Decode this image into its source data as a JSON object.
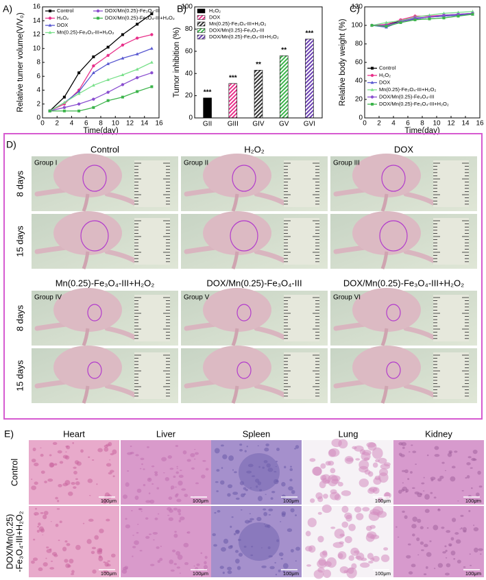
{
  "chart_data": [
    {
      "type": "line",
      "label": "A)",
      "xlabel": "Time(day)",
      "ylabel": "Relative tumer volume(V/V₀)",
      "x": [
        1,
        3,
        5,
        7,
        9,
        11,
        13,
        15
      ],
      "xlim": [
        0,
        16
      ],
      "xticks": [
        0,
        2,
        4,
        6,
        8,
        10,
        12,
        14,
        16
      ],
      "ylim": [
        0,
        16
      ],
      "yticks": [
        0,
        2,
        4,
        6,
        8,
        10,
        12,
        14,
        16
      ],
      "legend": "upper left",
      "series": [
        {
          "name": "Control",
          "color": "#000000",
          "values": [
            1,
            3,
            6.5,
            8.8,
            10.2,
            12.0,
            13.5,
            15.0
          ]
        },
        {
          "name": "H₂O₂",
          "color": "#e8308a",
          "values": [
            1,
            2,
            4,
            7.5,
            9,
            10.5,
            11.5,
            12.0
          ]
        },
        {
          "name": "DOX",
          "color": "#5656d0",
          "values": [
            1,
            2.2,
            3.8,
            6.5,
            7.8,
            8.6,
            9.2,
            10.0
          ]
        },
        {
          "name": "Mn(0.25)-Fe₃O₄-III+H₂O₂",
          "color": "#78e08a",
          "values": [
            1,
            2.2,
            3.5,
            4.7,
            5.5,
            6.2,
            7.0,
            8.0
          ]
        },
        {
          "name": "DOX/Mn(0.25)-Fe₃O₄-III",
          "color": "#8a4fd0",
          "values": [
            1,
            1.5,
            2.0,
            2.7,
            3.7,
            4.8,
            5.8,
            6.5
          ]
        },
        {
          "name": "DOX/Mn(0.25)-Fe₃O₄-III+H₂O₂",
          "color": "#3cb44b",
          "values": [
            1,
            1.0,
            1.0,
            1.5,
            2.5,
            3.0,
            3.8,
            4.5
          ]
        }
      ]
    },
    {
      "type": "bar",
      "label": "B)",
      "ylabel": "Tumor inhibition (%)",
      "categories": [
        "GII",
        "GIII",
        "GIV",
        "GV",
        "GVI"
      ],
      "ylim": [
        0,
        100
      ],
      "yticks": [
        0,
        20,
        40,
        60,
        80,
        100
      ],
      "legend": "upper left",
      "annotations": [
        "***",
        "***",
        "**",
        "**",
        "***"
      ],
      "series": [
        {
          "name": "H₂O₂",
          "color": "#000000",
          "values": [
            18,
            null,
            null,
            null,
            null
          ]
        },
        {
          "name": "DOX",
          "color": "#e8308a",
          "values": [
            null,
            31,
            null,
            null,
            null
          ]
        },
        {
          "name": "Mn(0.25)-Fe₃O₄-III+H₂O₂",
          "color": "#333333",
          "values": [
            null,
            null,
            43,
            null,
            null
          ]
        },
        {
          "name": "DOX/Mn(0.25)-Fe₃O₄-III",
          "color": "#3cb44b",
          "values": [
            null,
            null,
            null,
            56,
            null
          ]
        },
        {
          "name": "DOX/Mn(0.25)-Fe₃O₄-III+H₂O₂",
          "color": "#6a3fb0",
          "values": [
            null,
            null,
            null,
            null,
            71
          ]
        }
      ]
    },
    {
      "type": "line",
      "label": "C)",
      "xlabel": "Time(day)",
      "ylabel": "Relative body weight (%)",
      "x": [
        1,
        3,
        5,
        7,
        9,
        11,
        13,
        15
      ],
      "xlim": [
        0,
        16
      ],
      "xticks": [
        0,
        2,
        4,
        6,
        8,
        10,
        12,
        14,
        16
      ],
      "ylim": [
        0,
        120
      ],
      "yticks": [
        0,
        20,
        40,
        60,
        80,
        100,
        120
      ],
      "legend": "lower left",
      "series": [
        {
          "name": "Control",
          "color": "#000000",
          "values": [
            100,
            100,
            105,
            107,
            109,
            110,
            111,
            113
          ]
        },
        {
          "name": "H₂O₂",
          "color": "#e8308a",
          "values": [
            100,
            101,
            106,
            110,
            110,
            111,
            112,
            113
          ]
        },
        {
          "name": "DOX",
          "color": "#5656d0",
          "values": [
            100,
            98,
            104,
            107,
            109,
            110,
            111,
            112
          ]
        },
        {
          "name": "Mn(0.25)-Fe₃O₄-III+H₂O₂",
          "color": "#78e08a",
          "values": [
            100,
            103,
            105,
            109,
            111,
            113,
            114,
            115
          ]
        },
        {
          "name": "DOX/Mn(0.25)-Fe₃O₄-III",
          "color": "#8a4fd0",
          "values": [
            100,
            100,
            104,
            108,
            109,
            111,
            112,
            113
          ]
        },
        {
          "name": "DOX/Mn(0.25)-Fe₃O₄-III+H₂O₂",
          "color": "#3cb44b",
          "values": [
            100,
            99,
            103,
            106,
            107,
            108,
            110,
            112
          ]
        }
      ]
    }
  ],
  "panel_d": {
    "label": "D)",
    "day_labels": [
      "8 days",
      "15 days"
    ],
    "groups": [
      {
        "title": "Control",
        "group": "Group I"
      },
      {
        "title": "H₂O₂",
        "group": "Group II"
      },
      {
        "title": "DOX",
        "group": "Group III"
      },
      {
        "title": "Mn(0.25)-Fe₃O₄-III+H₂O₂",
        "group": "Group IV"
      },
      {
        "title": "DOX/Mn(0.25)-Fe₃O₄-III",
        "group": "Group V"
      },
      {
        "title": "DOX/Mn(0.25)-Fe₃O₄-III+H₂O₂",
        "group": "Group VI"
      }
    ]
  },
  "panel_e": {
    "label": "E)",
    "organs": [
      "Heart",
      "Liver",
      "Spleen",
      "Lung",
      "Kidney"
    ],
    "rows": [
      [
        "Control"
      ],
      [
        "DOX/Mn(0.25)",
        "-Fe₃O₄-III+H₂O₂"
      ]
    ],
    "scale_bar": "100μm"
  }
}
